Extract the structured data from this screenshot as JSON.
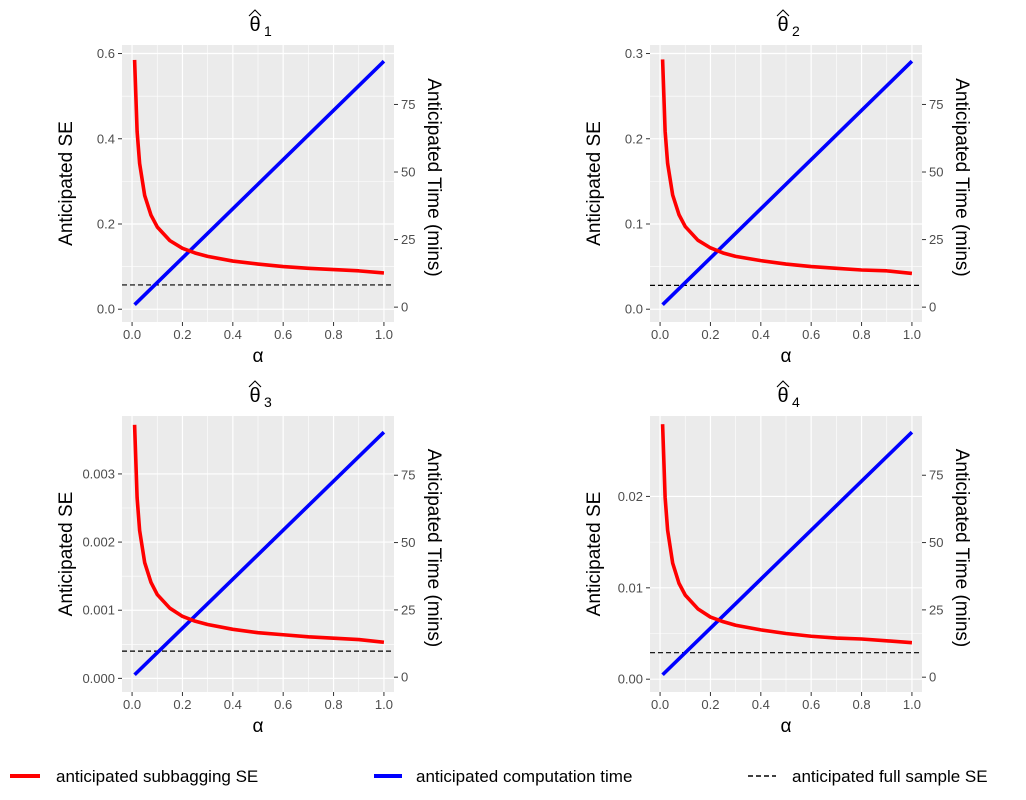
{
  "chart_data": [
    {
      "type": "line",
      "title_symbol": "θ",
      "title_subscript": "1",
      "xlabel": "α",
      "ylabel": "Anticipated SE",
      "y2label": "Anticipated Time (mins)",
      "xlim": [
        -0.04,
        1.04
      ],
      "ylim": [
        -0.03,
        0.62
      ],
      "y2lim": [
        -5.5,
        97
      ],
      "x_ticks": [
        "0.0",
        "0.2",
        "0.4",
        "0.6",
        "0.8",
        "1.0"
      ],
      "y_ticks": [
        0.0,
        0.2,
        0.4,
        0.6
      ],
      "y_tick_labels": [
        "0.0",
        "0.2",
        "0.4",
        "0.6"
      ],
      "y2_ticks": [
        0,
        25,
        50,
        75
      ],
      "y2_tick_labels": [
        "0",
        "25",
        "50",
        "75"
      ],
      "subbagging_se": {
        "x": [
          0.01,
          0.02,
          0.03,
          0.05,
          0.075,
          0.1,
          0.15,
          0.2,
          0.25,
          0.3,
          0.4,
          0.5,
          0.6,
          0.7,
          0.8,
          0.9,
          1.0
        ],
        "y": [
          0.585,
          0.417,
          0.342,
          0.267,
          0.221,
          0.193,
          0.161,
          0.143,
          0.132,
          0.124,
          0.113,
          0.106,
          0.1,
          0.096,
          0.093,
          0.09,
          0.085
        ]
      },
      "computation_time": {
        "x": [
          0.01,
          1.0
        ],
        "y": [
          0.9,
          91
        ]
      },
      "full_sample_se": 0.057
    },
    {
      "type": "line",
      "title_symbol": "θ",
      "title_subscript": "2",
      "xlabel": "α",
      "ylabel": "Anticipated SE",
      "y2label": "Anticipated Time (mins)",
      "xlim": [
        -0.04,
        1.04
      ],
      "ylim": [
        -0.015,
        0.31
      ],
      "y2lim": [
        -5.5,
        97
      ],
      "x_ticks": [
        "0.0",
        "0.2",
        "0.4",
        "0.6",
        "0.8",
        "1.0"
      ],
      "y_ticks": [
        0.0,
        0.1,
        0.2,
        0.3
      ],
      "y_tick_labels": [
        "0.0",
        "0.1",
        "0.2",
        "0.3"
      ],
      "y2_ticks": [
        0,
        25,
        50,
        75
      ],
      "y2_tick_labels": [
        "0",
        "25",
        "50",
        "75"
      ],
      "subbagging_se": {
        "x": [
          0.01,
          0.02,
          0.03,
          0.05,
          0.075,
          0.1,
          0.15,
          0.2,
          0.25,
          0.3,
          0.4,
          0.5,
          0.6,
          0.7,
          0.8,
          0.9,
          1.0
        ],
        "y": [
          0.293,
          0.209,
          0.171,
          0.134,
          0.111,
          0.097,
          0.081,
          0.072,
          0.066,
          0.062,
          0.057,
          0.053,
          0.05,
          0.048,
          0.046,
          0.045,
          0.042
        ]
      },
      "computation_time": {
        "x": [
          0.01,
          1.0
        ],
        "y": [
          0.9,
          91
        ]
      },
      "full_sample_se": 0.028
    },
    {
      "type": "line",
      "title_symbol": "θ",
      "title_subscript": "3",
      "xlabel": "α",
      "ylabel": "Anticipated SE",
      "y2label": "Anticipated Time (mins)",
      "xlim": [
        -0.04,
        1.04
      ],
      "ylim": [
        -0.0002,
        0.00385
      ],
      "y2lim": [
        -5.5,
        97
      ],
      "x_ticks": [
        "0.0",
        "0.2",
        "0.4",
        "0.6",
        "0.8",
        "1.0"
      ],
      "y_ticks": [
        0.0,
        0.001,
        0.002,
        0.003
      ],
      "y_tick_labels": [
        "0.000",
        "0.001",
        "0.002",
        "0.003"
      ],
      "y2_ticks": [
        0,
        25,
        50,
        75
      ],
      "y2_tick_labels": [
        "0",
        "25",
        "50",
        "75"
      ],
      "subbagging_se": {
        "x": [
          0.01,
          0.02,
          0.03,
          0.05,
          0.075,
          0.1,
          0.15,
          0.2,
          0.25,
          0.3,
          0.4,
          0.5,
          0.6,
          0.7,
          0.8,
          0.9,
          1.0
        ],
        "y": [
          0.00372,
          0.00265,
          0.00217,
          0.0017,
          0.00141,
          0.00123,
          0.00103,
          0.00091,
          0.00084,
          0.00079,
          0.00072,
          0.00067,
          0.00064,
          0.00061,
          0.00059,
          0.00057,
          0.00053
        ]
      },
      "computation_time": {
        "x": [
          0.01,
          1.0
        ],
        "y": [
          0.9,
          91
        ]
      },
      "full_sample_se": 0.0004
    },
    {
      "type": "line",
      "title_symbol": "θ",
      "title_subscript": "4",
      "xlabel": "α",
      "ylabel": "Anticipated SE",
      "y2label": "Anticipated Time (mins)",
      "xlim": [
        -0.04,
        1.04
      ],
      "ylim": [
        -0.0014,
        0.0288
      ],
      "y2lim": [
        -5.5,
        97
      ],
      "x_ticks": [
        "0.0",
        "0.2",
        "0.4",
        "0.6",
        "0.8",
        "1.0"
      ],
      "y_ticks": [
        0.0,
        0.01,
        0.02
      ],
      "y_tick_labels": [
        "0.00",
        "0.01",
        "0.02"
      ],
      "y2_ticks": [
        0,
        25,
        50,
        75
      ],
      "y2_tick_labels": [
        "0",
        "25",
        "50",
        "75"
      ],
      "subbagging_se": {
        "x": [
          0.01,
          0.02,
          0.03,
          0.05,
          0.075,
          0.1,
          0.15,
          0.2,
          0.25,
          0.3,
          0.4,
          0.5,
          0.6,
          0.7,
          0.8,
          0.9,
          1.0
        ],
        "y": [
          0.0279,
          0.0199,
          0.0163,
          0.0127,
          0.0105,
          0.0092,
          0.0077,
          0.0068,
          0.0063,
          0.0059,
          0.0054,
          0.005,
          0.0047,
          0.0045,
          0.0044,
          0.0042,
          0.004
        ]
      },
      "computation_time": {
        "x": [
          0.01,
          1.0
        ],
        "y": [
          0.9,
          91
        ]
      },
      "full_sample_se": 0.0029
    }
  ],
  "legend": {
    "items": [
      {
        "label": "anticipated subbagging SE",
        "color": "#ff0000",
        "style": "solid"
      },
      {
        "label": "anticipated computation time",
        "color": "#0000ff",
        "style": "solid"
      },
      {
        "label": "anticipated full sample SE",
        "color": "#000000",
        "style": "dashed"
      }
    ]
  },
  "colors": {
    "panel_background": "#ebebeb",
    "grid": "#ffffff",
    "subbagging_se": "#ff0000",
    "computation_time": "#0000ff",
    "full_sample_se": "#000000"
  }
}
